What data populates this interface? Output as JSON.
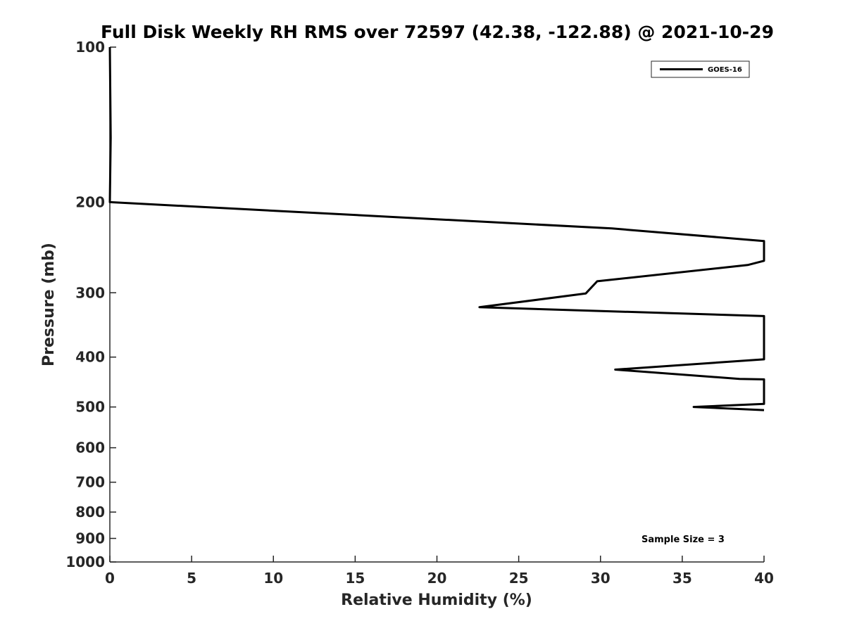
{
  "chart_data": {
    "type": "line",
    "title": "Full Disk Weekly RH RMS over 72597 (42.38, -122.88) @ 2021-10-29",
    "xlabel": "Relative Humidity (%)",
    "ylabel": "Pressure (mb)",
    "xlim": [
      0,
      40
    ],
    "ylim": [
      100,
      1000
    ],
    "y_scale": "log",
    "y_reversed": true,
    "x_ticks": [
      0,
      5,
      10,
      15,
      20,
      25,
      30,
      35,
      40
    ],
    "y_ticks": [
      100,
      200,
      300,
      400,
      500,
      600,
      700,
      800,
      900,
      1000
    ],
    "grid": false,
    "legend_position": "top-right",
    "series": [
      {
        "name": "GOES-16",
        "color": "#000000",
        "points": [
          {
            "x": 0.0,
            "y": 100
          },
          {
            "x": 0.05,
            "y": 150
          },
          {
            "x": 0.0,
            "y": 200
          },
          {
            "x": 30.7,
            "y": 225
          },
          {
            "x": 40.0,
            "y": 238
          },
          {
            "x": 40.0,
            "y": 260
          },
          {
            "x": 39.0,
            "y": 265
          },
          {
            "x": 29.8,
            "y": 285
          },
          {
            "x": 29.1,
            "y": 301
          },
          {
            "x": 22.6,
            "y": 320
          },
          {
            "x": 40.0,
            "y": 333
          },
          {
            "x": 40.0,
            "y": 404
          },
          {
            "x": 30.9,
            "y": 423
          },
          {
            "x": 38.5,
            "y": 441
          },
          {
            "x": 40.0,
            "y": 442
          },
          {
            "x": 40.0,
            "y": 493
          },
          {
            "x": 35.7,
            "y": 500
          },
          {
            "x": 40.0,
            "y": 507
          }
        ]
      }
    ],
    "annotation": "Sample Size = 3"
  }
}
